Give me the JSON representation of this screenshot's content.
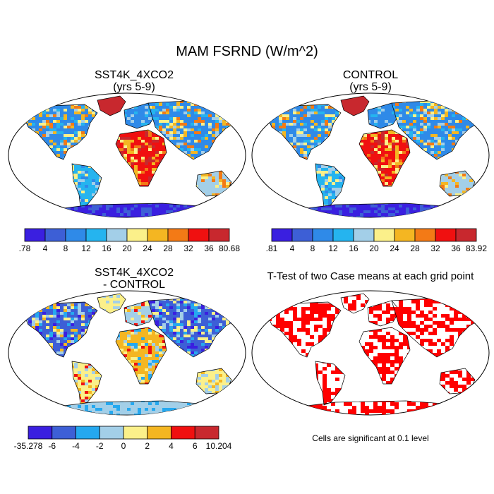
{
  "main_title": "MAM FSRND (W/m^2)",
  "panels": {
    "case": {
      "title": "SST4K_4XCO2",
      "subtitle": "(yrs 5-9)"
    },
    "control": {
      "title": "CONTROL",
      "subtitle": "(yrs 5-9)"
    },
    "diff": {
      "title": "SST4K_4XCO2",
      "subtitle": "- CONTROL"
    },
    "ttest": {
      "title": "T-Test of two Case means at each grid point"
    }
  },
  "note": "Cells are significant at 0.1 level",
  "colorbars": {
    "case": {
      "colors": [
        "#3a1fe0",
        "#3d5fd6",
        "#2f8ae8",
        "#25b4ef",
        "#a3cfe8",
        "#fbf08a",
        "#f4b622",
        "#f37a16",
        "#f01010",
        "#c8282e"
      ],
      "labels": [
        ".78",
        "4",
        "8",
        "12",
        "16",
        "20",
        "24",
        "28",
        "32",
        "36",
        "80.68"
      ]
    },
    "control": {
      "colors": [
        "#3a1fe0",
        "#3d5fd6",
        "#2f8ae8",
        "#25b4ef",
        "#a3cfe8",
        "#fbf08a",
        "#f4b622",
        "#f37a16",
        "#f01010",
        "#c8282e"
      ],
      "labels": [
        ".81",
        "4",
        "8",
        "12",
        "16",
        "20",
        "24",
        "28",
        "32",
        "36",
        "83.92"
      ]
    },
    "diff": {
      "colors": [
        "#3a1fe0",
        "#3d5fd6",
        "#25a8ef",
        "#a3cfe8",
        "#fbf08a",
        "#f4b622",
        "#f01010",
        "#c8282e"
      ],
      "labels": [
        "-35.278",
        "-6",
        "-4",
        "-2",
        "0",
        "2",
        "4",
        "6",
        "10.204"
      ]
    }
  }
}
